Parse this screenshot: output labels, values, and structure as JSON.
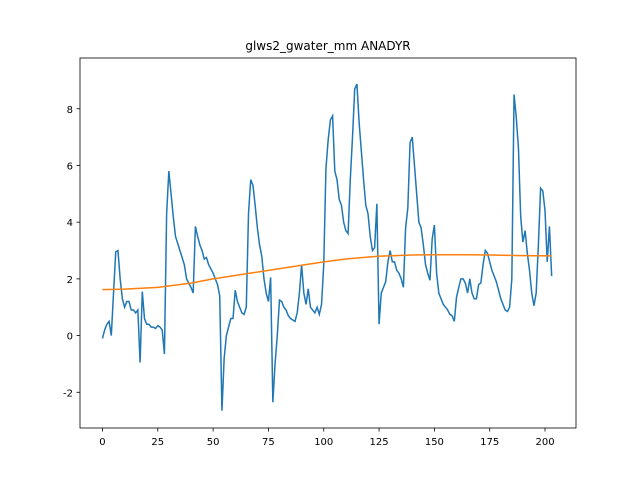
{
  "chart_data": {
    "type": "line",
    "title": "glws2_gwater_mm ANADYR",
    "xlim": [
      -10.15,
      214.0
    ],
    "ylim": [
      -3.26,
      9.79
    ],
    "xticks": [
      0,
      25,
      50,
      75,
      100,
      125,
      150,
      175,
      200
    ],
    "yticks": [
      -2,
      0,
      2,
      4,
      6,
      8
    ],
    "series": [
      {
        "color": "#1f77b4",
        "x": [
          0,
          1,
          2,
          3,
          4,
          5,
          6,
          7,
          8,
          9,
          10,
          11,
          12,
          13,
          14,
          15,
          16,
          17,
          18,
          19,
          20,
          21,
          22,
          23,
          24,
          25,
          26,
          27,
          28,
          29,
          30,
          31,
          32,
          33,
          34,
          35,
          36,
          37,
          38,
          39,
          40,
          41,
          42,
          43,
          44,
          45,
          46,
          47,
          48,
          49,
          50,
          51,
          52,
          53,
          54,
          55,
          56,
          57,
          58,
          59,
          60,
          61,
          62,
          63,
          64,
          65,
          66,
          67,
          68,
          69,
          70,
          71,
          72,
          73,
          74,
          75,
          76,
          77,
          78,
          79,
          80,
          81,
          82,
          83,
          84,
          85,
          86,
          87,
          88,
          89,
          90,
          91,
          92,
          93,
          94,
          95,
          96,
          97,
          98,
          99,
          100,
          101,
          102,
          103,
          104,
          105,
          106,
          107,
          108,
          109,
          110,
          111,
          112,
          113,
          114,
          115,
          116,
          117,
          118,
          119,
          120,
          121,
          122,
          123,
          124,
          125,
          126,
          127,
          128,
          129,
          130,
          131,
          132,
          133,
          134,
          135,
          136,
          137,
          138,
          139,
          140,
          141,
          142,
          143,
          144,
          145,
          146,
          147,
          148,
          149,
          150,
          151,
          152,
          153,
          154,
          155,
          156,
          157,
          158,
          159,
          160,
          161,
          162,
          163,
          164,
          165,
          166,
          167,
          168,
          169,
          170,
          171,
          172,
          173,
          174,
          175,
          176,
          177,
          178,
          179,
          180,
          181,
          182,
          183,
          184,
          185,
          186,
          187,
          188,
          189,
          190,
          191,
          192,
          193,
          194,
          195,
          196,
          197,
          198,
          199,
          200,
          201,
          202,
          203
        ],
        "values": [
          -0.1,
          0.2,
          0.4,
          0.5,
          0.0,
          1.5,
          2.95,
          3.0,
          2.0,
          1.3,
          1.0,
          1.2,
          1.2,
          0.9,
          0.9,
          0.8,
          0.9,
          -0.95,
          1.55,
          0.6,
          0.4,
          0.4,
          0.3,
          0.3,
          0.25,
          0.35,
          0.3,
          0.2,
          -0.65,
          4.3,
          5.8,
          5.0,
          4.2,
          3.5,
          3.25,
          3.0,
          2.75,
          2.5,
          2.0,
          1.85,
          1.7,
          1.5,
          3.85,
          3.5,
          3.2,
          3.0,
          2.7,
          2.75,
          2.5,
          2.35,
          2.2,
          2.0,
          1.8,
          1.4,
          -2.65,
          -0.8,
          0.0,
          0.3,
          0.6,
          0.6,
          1.6,
          1.2,
          1.0,
          0.8,
          0.75,
          1.0,
          4.3,
          5.5,
          5.3,
          4.6,
          3.8,
          3.2,
          2.8,
          2.0,
          1.5,
          1.2,
          2.05,
          -2.35,
          -1.0,
          0.0,
          1.25,
          1.2,
          1.0,
          0.9,
          0.7,
          0.6,
          0.55,
          0.5,
          0.8,
          1.5,
          2.5,
          1.5,
          1.1,
          1.65,
          1.0,
          0.9,
          0.8,
          1.0,
          0.75,
          1.1,
          2.5,
          5.9,
          6.9,
          7.6,
          7.75,
          5.8,
          5.5,
          4.8,
          4.6,
          4.0,
          3.7,
          3.6,
          5.5,
          7.0,
          8.7,
          8.87,
          7.5,
          6.5,
          5.5,
          4.6,
          4.3,
          3.5,
          3.0,
          3.1,
          4.65,
          0.4,
          1.5,
          1.7,
          1.9,
          2.6,
          3.0,
          2.6,
          2.6,
          2.3,
          2.2,
          2.0,
          1.7,
          3.8,
          4.5,
          6.8,
          7.0,
          6.0,
          5.0,
          4.0,
          3.8,
          3.2,
          2.5,
          2.2,
          1.95,
          3.4,
          3.9,
          2.2,
          1.5,
          1.3,
          1.1,
          1.0,
          0.9,
          0.75,
          0.7,
          0.5,
          1.35,
          1.7,
          2.0,
          2.0,
          1.85,
          1.5,
          2.0,
          1.5,
          1.3,
          1.3,
          1.8,
          1.85,
          2.5,
          3.0,
          2.9,
          2.6,
          2.3,
          2.1,
          1.9,
          1.6,
          1.3,
          1.1,
          0.9,
          0.85,
          1.0,
          2.0,
          8.5,
          7.7,
          6.6,
          4.2,
          3.3,
          3.7,
          2.9,
          2.3,
          1.5,
          1.05,
          1.5,
          3.2,
          5.2,
          5.1,
          4.4,
          2.6,
          3.85,
          2.1
        ]
      },
      {
        "color": "#ff7f0e",
        "x": [
          0,
          10,
          25,
          40,
          50,
          60,
          75,
          90,
          100,
          110,
          125,
          140,
          150,
          165,
          175,
          190,
          203
        ],
        "values": [
          1.62,
          1.64,
          1.7,
          1.85,
          2.0,
          2.12,
          2.3,
          2.48,
          2.6,
          2.7,
          2.8,
          2.84,
          2.85,
          2.85,
          2.84,
          2.82,
          2.81
        ]
      }
    ]
  }
}
